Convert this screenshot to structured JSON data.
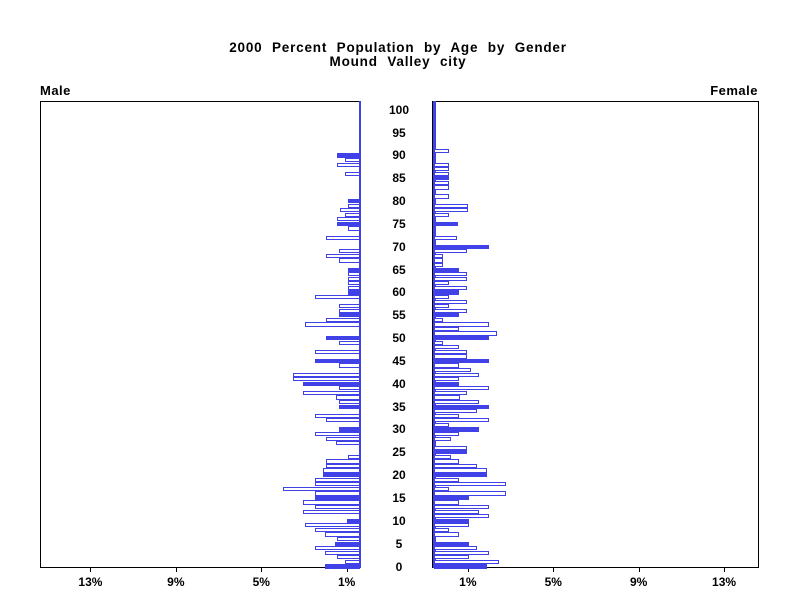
{
  "title": {
    "line1": "2000 Percent Population by Age by Gender",
    "line2": "Mound Valley city"
  },
  "panels": {
    "left_label": "Male",
    "right_label": "Female"
  },
  "age_axis": {
    "tick_labels": [
      "0",
      "5",
      "10",
      "15",
      "20",
      "25",
      "30",
      "35",
      "40",
      "45",
      "50",
      "55",
      "60",
      "65",
      "70",
      "75",
      "80",
      "85",
      "90",
      "95",
      "100"
    ]
  },
  "x_axis": {
    "male_tick_labels": [
      "13%",
      "9%",
      "5%",
      "1%"
    ],
    "male_tick_percents": [
      13,
      9,
      5,
      1
    ],
    "female_tick_labels": [
      "1%",
      "5%",
      "9%",
      "13%"
    ],
    "female_tick_percents": [
      1,
      5,
      9,
      13
    ]
  },
  "colors": {
    "bar_blue": "#4141E8",
    "frame": "#000000",
    "background": "#FFFFFF"
  },
  "chart_data": {
    "type": "bar",
    "subtype": "population-pyramid",
    "title": "2000 Percent Population by Age by Gender — Mound Valley city",
    "x_unit": "percent of population",
    "xlim_each_side": [
      0,
      15.2
    ],
    "age_range": [
      0,
      100
    ],
    "grid": false,
    "highlight_rule": "bars at ages divisible by 5 are filled solid blue; all other single-year bars are white with a blue outline",
    "series": [
      {
        "name": "Male",
        "side": "left",
        "values_by_age": [
          1.63,
          0.7,
          1.08,
          1.63,
          2.09,
          1.16,
          1.08,
          1.63,
          2.09,
          2.56,
          0.62,
          0,
          2.64,
          2.1,
          2.67,
          2.1,
          2.1,
          3.6,
          2.1,
          2.1,
          1.7,
          1.7,
          1.58,
          1.58,
          0.57,
          0,
          0,
          1.1,
          1.58,
          2.1,
          1.0,
          0,
          1.58,
          2.1,
          0,
          1.0,
          1.0,
          1.1,
          2.65,
          1.0,
          2.67,
          3.13,
          3.13,
          0,
          1.0,
          2.1,
          0,
          2.1,
          0,
          1.0,
          1.58,
          0,
          0,
          2.56,
          1.58,
          1.0,
          1.0,
          1.0,
          0,
          2.1,
          0.57,
          0.57,
          0.57,
          0.57,
          0.57,
          0.57,
          0,
          1.0,
          1.58,
          1.0,
          0,
          0,
          1.58,
          0,
          0.57,
          1.05,
          1.05,
          0.7,
          0.93,
          0.55,
          0.55,
          0,
          0,
          0,
          0,
          0,
          0.7,
          0,
          1.05,
          0.7,
          1.05,
          0,
          0,
          0,
          0,
          0,
          0,
          0,
          0,
          0,
          0
        ]
      },
      {
        "name": "Female",
        "side": "right",
        "values_by_age": [
          2.48,
          3.0,
          1.63,
          2.56,
          2.0,
          1.63,
          0,
          1.16,
          0.7,
          1.63,
          1.63,
          2.56,
          2.09,
          2.56,
          1.16,
          1.63,
          3.33,
          0.7,
          3.33,
          1.16,
          2.48,
          2.48,
          2.0,
          1.16,
          0.77,
          1.55,
          1.55,
          0,
          0.77,
          1.16,
          2.09,
          0.7,
          2.56,
          1.16,
          2.0,
          2.56,
          2.1,
          1.2,
          1.55,
          2.56,
          1.16,
          1.16,
          2.1,
          1.7,
          1.16,
          2.56,
          1.55,
          1.55,
          1.16,
          0.42,
          2.56,
          2.94,
          1.16,
          2.56,
          0.42,
          1.16,
          1.55,
          0.7,
          1.55,
          0.7,
          1.16,
          1.55,
          0.7,
          1.55,
          1.55,
          1.16,
          0.42,
          0.42,
          0.42,
          1.55,
          2.56,
          0,
          1.08,
          0,
          0,
          1.13,
          0,
          0.7,
          1.6,
          1.6,
          0,
          0.7,
          0,
          0.7,
          0.7,
          0.7,
          0.7,
          0.7,
          0.7,
          0,
          0,
          0.7,
          0,
          0,
          0,
          0,
          0,
          0,
          0,
          0,
          0
        ]
      }
    ]
  }
}
